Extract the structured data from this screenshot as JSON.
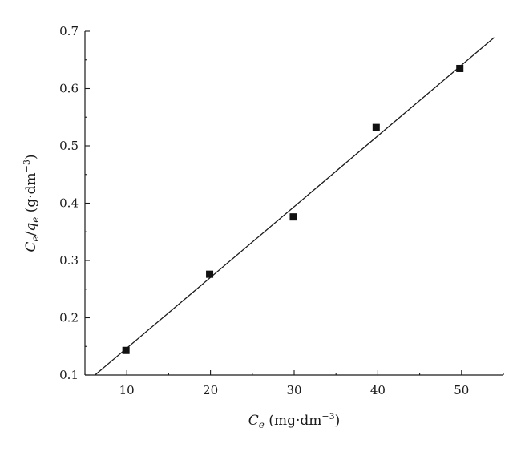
{
  "chart_data": {
    "type": "scatter",
    "title": "",
    "xlabel": {
      "var": "C",
      "sub": "e",
      "unit_open": " (mg·dm",
      "unit_exp": "−3",
      "unit_close": ")"
    },
    "ylabel": {
      "var1": "C",
      "sub1": "e",
      "slash": "/",
      "var2": "q",
      "sub2": "e",
      "unit_open": " (g·dm",
      "unit_exp": "−3",
      "unit_close": ")"
    },
    "xlim": [
      5,
      55
    ],
    "ylim": [
      0.1,
      0.7
    ],
    "x_ticks": [
      10,
      20,
      30,
      40,
      50
    ],
    "x_minor_ticks": [
      5,
      15,
      25,
      35,
      45,
      55
    ],
    "y_ticks": [
      "0.1",
      "0.2",
      "0.3",
      "0.4",
      "0.5",
      "0.6",
      "0.7"
    ],
    "y_minor_ticks": [
      0.15,
      0.25,
      0.35,
      0.45,
      0.55,
      0.65
    ],
    "series": [
      {
        "marker": "square",
        "x": [
          9.9,
          19.9,
          29.9,
          39.8,
          49.8
        ],
        "y": [
          0.143,
          0.276,
          0.376,
          0.532,
          0.635
        ]
      }
    ],
    "fit_line": {
      "x": [
        6.2,
        53.9
      ],
      "y": [
        0.1,
        0.689
      ]
    },
    "grid": false,
    "legend": "none"
  }
}
